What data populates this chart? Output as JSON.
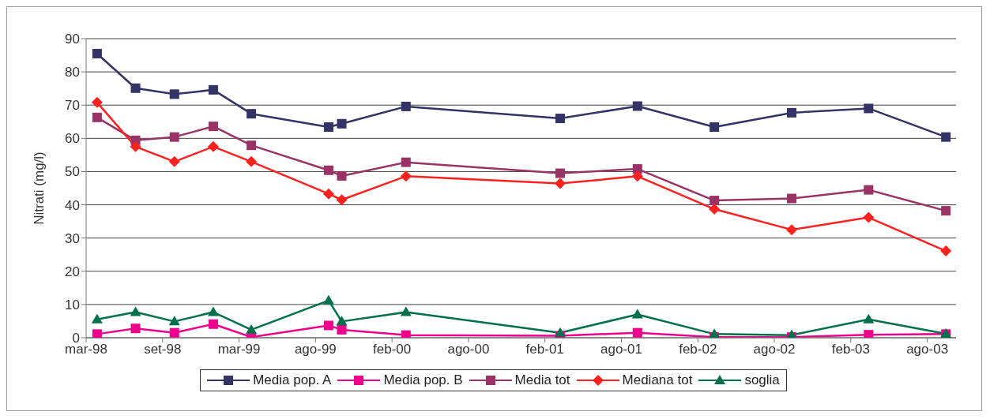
{
  "chart_data": {
    "type": "line",
    "ylabel": "Nitrati (mg/l)",
    "x": [
      "1998-03-31",
      "1998-06-30",
      "1998-09-30",
      "1998-12-31",
      "1999-03-31",
      "1999-09-30",
      "1999-10-31",
      "2000-03-31",
      "2001-03-31",
      "2001-09-30",
      "2002-03-31",
      "2002-09-30",
      "2003-03-31",
      "2003-09-30"
    ],
    "series": [
      {
        "name": "Media pop. A",
        "color": "#333366",
        "marker": "square",
        "values": [
          85.5,
          75.1,
          73.3,
          74.6,
          67.4,
          63.4,
          64.4,
          69.6,
          66.0,
          69.7,
          63.4,
          67.7,
          69.0,
          60.4
        ]
      },
      {
        "name": "Media pop. B",
        "color": "#ec008c",
        "marker": "square",
        "values": [
          1.1,
          2.8,
          1.5,
          4.1,
          0.2,
          3.7,
          2.4,
          0.8,
          0.6,
          1.5,
          0.2,
          0.2,
          0.9,
          1.1
        ]
      },
      {
        "name": "Media tot",
        "color": "#993366",
        "marker": "square",
        "values": [
          66.3,
          59.4,
          60.4,
          63.6,
          57.9,
          50.4,
          48.7,
          52.8,
          49.5,
          50.8,
          41.3,
          41.9,
          44.5,
          38.2
        ]
      },
      {
        "name": "Mediana tot",
        "color": "#ff2020",
        "marker": "diamond",
        "values": [
          70.8,
          57.5,
          53.0,
          57.5,
          53.0,
          43.3,
          41.5,
          48.6,
          46.4,
          48.6,
          38.7,
          32.5,
          36.2,
          26.1
        ]
      },
      {
        "name": "soglia",
        "color": "#00704a",
        "marker": "triangle",
        "values": [
          5.5,
          7.7,
          4.9,
          7.7,
          2.4,
          11.2,
          4.9,
          7.7,
          1.5,
          7.0,
          1.1,
          0.8,
          5.5,
          1.2
        ]
      }
    ],
    "xlim": [
      "1998-03-05",
      "2003-10-24"
    ],
    "xticks": [
      {
        "value": "1998-03-05",
        "label": "mar-98"
      },
      {
        "value": "1998-09-02",
        "label": "set-98"
      },
      {
        "value": "1999-03-02",
        "label": "mar-99"
      },
      {
        "value": "1999-08-30",
        "label": "ago-99"
      },
      {
        "value": "2000-02-27",
        "label": "feb-00"
      },
      {
        "value": "2000-08-26",
        "label": "ago-00"
      },
      {
        "value": "2001-02-23",
        "label": "feb-01"
      },
      {
        "value": "2001-08-23",
        "label": "ago-01"
      },
      {
        "value": "2002-02-20",
        "label": "feb-02"
      },
      {
        "value": "2002-08-20",
        "label": "ago-02"
      },
      {
        "value": "2003-02-17",
        "label": "feb-03"
      },
      {
        "value": "2003-08-17",
        "label": "ago-03"
      }
    ],
    "ylim": [
      0,
      90
    ],
    "yticks": [
      0,
      10,
      20,
      30,
      40,
      50,
      60,
      70,
      80,
      90
    ],
    "grid": "y",
    "legend": "bottom"
  }
}
